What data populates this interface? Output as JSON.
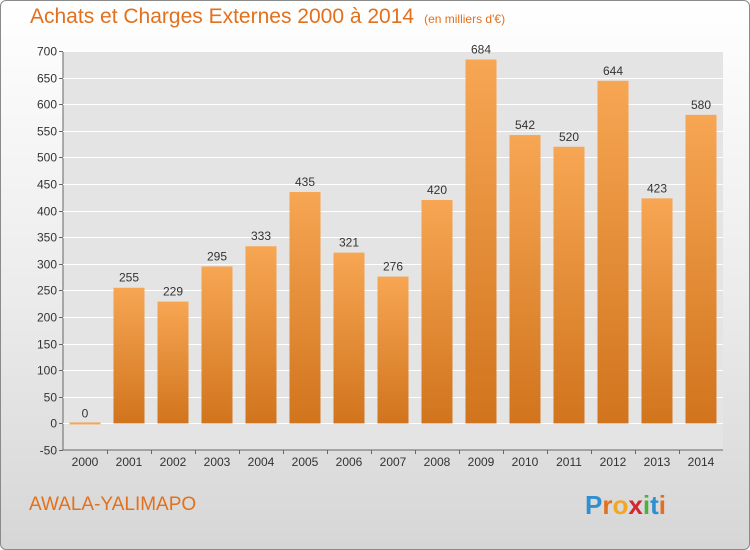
{
  "header": {
    "title": "Achats et Charges Externes 2000 à 2014",
    "unit": "(en milliers d'€)"
  },
  "footer": {
    "commune": "AWALA-YALIMAPO",
    "brand_letters": [
      {
        "ch": "P",
        "color": "#2f8fd0"
      },
      {
        "ch": "r",
        "color": "#e2701c"
      },
      {
        "ch": "o",
        "color": "#f2a623"
      },
      {
        "ch": "x",
        "color": "#d6252f"
      },
      {
        "ch": "i",
        "color": "#4fae3e"
      },
      {
        "ch": "t",
        "color": "#2f8fd0"
      },
      {
        "ch": "i",
        "color": "#e2701c"
      }
    ]
  },
  "colors": {
    "bar_light": "#f7a653",
    "bar_dark": "#d1741d",
    "title": "#e2701c",
    "axis_text": "#333333",
    "grid": "#ffffff"
  },
  "chart_data": {
    "type": "bar",
    "categories": [
      "2000",
      "2001",
      "2002",
      "2003",
      "2004",
      "2005",
      "2006",
      "2007",
      "2008",
      "2009",
      "2010",
      "2011",
      "2012",
      "2013",
      "2014"
    ],
    "values": [
      0,
      255,
      229,
      295,
      333,
      435,
      321,
      276,
      420,
      684,
      542,
      520,
      644,
      423,
      580
    ],
    "value_labels": [
      "0",
      "255",
      "229",
      "295",
      "333",
      "435",
      "321",
      "276",
      "420",
      "684",
      "542",
      "520",
      "644",
      "423",
      "580"
    ],
    "ylim": [
      -50,
      700
    ],
    "yticks": [
      -50,
      0,
      50,
      100,
      150,
      200,
      250,
      300,
      350,
      400,
      450,
      500,
      550,
      600,
      650,
      700
    ],
    "ytick_labels": [
      "-50",
      "0",
      "50",
      "100",
      "150",
      "200",
      "250",
      "300",
      "350",
      "400",
      "450",
      "500",
      "550",
      "600",
      "650",
      "700"
    ],
    "grid": true,
    "legend": "none"
  }
}
